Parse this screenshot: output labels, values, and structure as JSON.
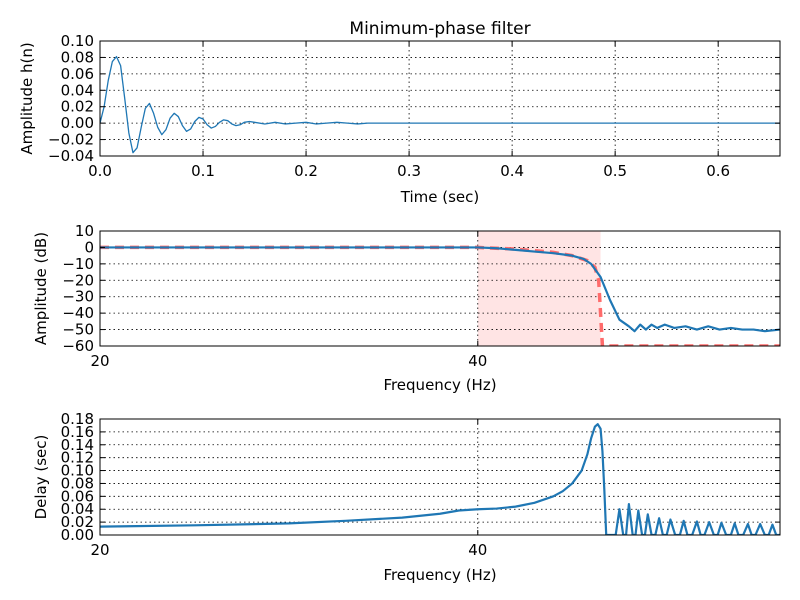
{
  "chart_data": [
    {
      "type": "line",
      "title": "Minimum-phase filter",
      "xlabel": "Time (sec)",
      "ylabel": "Amplitude h(n)",
      "xlim": [
        0.0,
        0.66
      ],
      "ylim": [
        -0.04,
        0.1
      ],
      "xticks": [
        0.0,
        0.1,
        0.2,
        0.3,
        0.4,
        0.5,
        0.6
      ],
      "xtick_labels": [
        "0.0",
        "0.1",
        "0.2",
        "0.3",
        "0.4",
        "0.5",
        "0.6"
      ],
      "yticks": [
        -0.04,
        -0.02,
        0.0,
        0.02,
        0.04,
        0.06,
        0.08,
        0.1
      ],
      "ytick_labels": [
        "−0.04",
        "−0.02",
        "0.00",
        "0.02",
        "0.04",
        "0.06",
        "0.08",
        "0.10"
      ],
      "grid": true,
      "series": [
        {
          "color": "#1f77b4",
          "x": [
            0.0,
            0.004,
            0.008,
            0.012,
            0.016,
            0.02,
            0.024,
            0.028,
            0.032,
            0.036,
            0.04,
            0.044,
            0.048,
            0.052,
            0.056,
            0.06,
            0.064,
            0.068,
            0.072,
            0.076,
            0.08,
            0.084,
            0.088,
            0.092,
            0.096,
            0.1,
            0.104,
            0.108,
            0.112,
            0.116,
            0.12,
            0.124,
            0.128,
            0.132,
            0.136,
            0.14,
            0.145,
            0.15,
            0.16,
            0.17,
            0.18,
            0.19,
            0.2,
            0.21,
            0.22,
            0.23,
            0.24,
            0.25,
            0.26,
            0.28,
            0.3,
            0.32,
            0.34,
            0.36,
            0.38,
            0.4,
            0.45,
            0.5,
            0.55,
            0.6,
            0.66
          ],
          "y": [
            0.0,
            0.02,
            0.052,
            0.075,
            0.081,
            0.07,
            0.03,
            -0.012,
            -0.036,
            -0.03,
            -0.005,
            0.018,
            0.024,
            0.012,
            -0.005,
            -0.014,
            -0.008,
            0.006,
            0.012,
            0.008,
            -0.003,
            -0.01,
            -0.007,
            0.002,
            0.007,
            0.005,
            -0.002,
            -0.006,
            -0.004,
            0.001,
            0.004,
            0.003,
            -0.001,
            -0.003,
            -0.002,
            0.001,
            0.002,
            0.001,
            -0.001,
            0.001,
            -0.001,
            0.0,
            0.001,
            -0.001,
            0.0,
            0.001,
            0.0,
            -0.001,
            0.0,
            0.0,
            0.0,
            0.0,
            0.0,
            0.0,
            0.0,
            0.0,
            0.0,
            0.0,
            0.0,
            0.0,
            0.0
          ]
        }
      ]
    },
    {
      "type": "line",
      "xlabel": "Frequency (Hz)",
      "ylabel": "Amplitude (dB)",
      "xlim": [
        20,
        56
      ],
      "ylim": [
        -60,
        10
      ],
      "xticks": [
        20,
        40
      ],
      "xtick_labels": [
        "20",
        "40"
      ],
      "yticks": [
        -60,
        -50,
        -40,
        -30,
        -20,
        -10,
        0,
        10
      ],
      "ytick_labels": [
        "−60",
        "−50",
        "−40",
        "−30",
        "−20",
        "−10",
        "0",
        "10"
      ],
      "grid": true,
      "shaded_band": {
        "x": [
          40,
          46.5
        ],
        "color": "#ffb3b3",
        "opacity": 0.35
      },
      "series": [
        {
          "color": "#ff6b6b",
          "dashed": true,
          "x": [
            20,
            40,
            42,
            44,
            45,
            45.8,
            46.2,
            46.4,
            46.5,
            46.6,
            56
          ],
          "y": [
            0,
            0,
            -1,
            -3,
            -5,
            -8,
            -12,
            -20,
            -40,
            -60,
            -60
          ]
        },
        {
          "color": "#1f77b4",
          "x": [
            20,
            40,
            41,
            42,
            43,
            44,
            45,
            45.6,
            46.0,
            46.5,
            47.0,
            47.5,
            48.0,
            48.3,
            48.6,
            48.9,
            49.2,
            49.5,
            49.9,
            50.4,
            51.0,
            51.6,
            52.2,
            52.8,
            53.4,
            54.0,
            54.6,
            55.2,
            56.0
          ],
          "y": [
            0,
            0,
            -0.5,
            -1.5,
            -2.5,
            -3.5,
            -5,
            -7,
            -10,
            -18,
            -32,
            -44,
            -48,
            -51,
            -47,
            -50,
            -47,
            -49,
            -47,
            -49,
            -48,
            -50,
            -48,
            -50,
            -49,
            -50,
            -50,
            -51,
            -50
          ]
        }
      ]
    },
    {
      "type": "line",
      "xlabel": "Frequency (Hz)",
      "ylabel": "Delay (sec)",
      "xlim": [
        20,
        56
      ],
      "ylim": [
        0.0,
        0.18
      ],
      "xticks": [
        20,
        40
      ],
      "xtick_labels": [
        "20",
        "40"
      ],
      "yticks": [
        0.0,
        0.02,
        0.04,
        0.06,
        0.08,
        0.1,
        0.12,
        0.14,
        0.16,
        0.18
      ],
      "ytick_labels": [
        "0.00",
        "0.02",
        "0.04",
        "0.06",
        "0.08",
        "0.10",
        "0.12",
        "0.14",
        "0.16",
        "0.18"
      ],
      "grid": true,
      "series": [
        {
          "color": "#1f77b4",
          "x": [
            20,
            25,
            30,
            33,
            36,
            38,
            39,
            40,
            41,
            42,
            43,
            44,
            44.5,
            45,
            45.5,
            45.8,
            46.0,
            46.2,
            46.35,
            46.5,
            46.6,
            46.7,
            46.8,
            47.0,
            47.3,
            47.5,
            47.7,
            47.85,
            48.0,
            48.2,
            48.35,
            48.5,
            48.7,
            48.85,
            49.0,
            49.2,
            49.4,
            49.6,
            49.8,
            50.0,
            50.2,
            50.45,
            50.7,
            50.9,
            51.1,
            51.35,
            51.6,
            51.8,
            52.0,
            52.25,
            52.5,
            52.7,
            52.9,
            53.15,
            53.4,
            53.6,
            53.8,
            54.05,
            54.3,
            54.5,
            54.7,
            54.95,
            55.2,
            55.4,
            55.6,
            55.8,
            56.0
          ],
          "y": [
            0.013,
            0.015,
            0.018,
            0.022,
            0.027,
            0.033,
            0.038,
            0.04,
            0.041,
            0.044,
            0.05,
            0.06,
            0.068,
            0.08,
            0.1,
            0.125,
            0.15,
            0.168,
            0.172,
            0.165,
            0.13,
            0.07,
            0.0,
            0.0,
            0.0,
            0.04,
            0.0,
            0.0,
            0.048,
            0.0,
            0.0,
            0.038,
            0.0,
            0.0,
            0.032,
            0.0,
            0.0,
            0.026,
            0.0,
            0.0,
            0.024,
            0.0,
            0.0,
            0.022,
            0.0,
            0.0,
            0.021,
            0.0,
            0.0,
            0.02,
            0.0,
            0.0,
            0.019,
            0.0,
            0.0,
            0.018,
            0.0,
            0.0,
            0.017,
            0.0,
            0.0,
            0.017,
            0.0,
            0.0,
            0.016,
            0.0,
            0.0
          ]
        }
      ]
    }
  ]
}
